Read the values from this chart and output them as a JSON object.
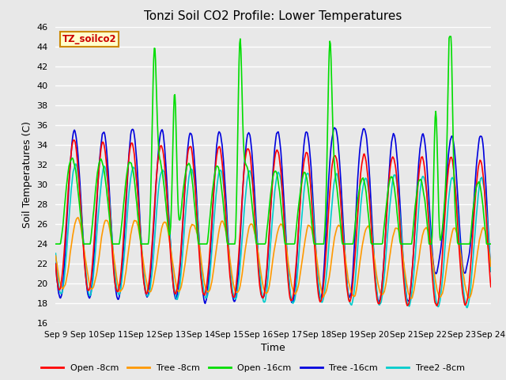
{
  "title": "Tonzi Soil CO2 Profile: Lower Temperatures",
  "xlabel": "Time",
  "ylabel": "Soil Temperatures (C)",
  "ylim": [
    16,
    46
  ],
  "yticks": [
    16,
    18,
    20,
    22,
    24,
    26,
    28,
    30,
    32,
    34,
    36,
    38,
    40,
    42,
    44,
    46
  ],
  "x_labels": [
    "Sep 9",
    "Sep 10",
    "Sep 11",
    "Sep 12",
    "Sep 13",
    "Sep 14",
    "Sep 15",
    "Sep 16",
    "Sep 17",
    "Sep 18",
    "Sep 19",
    "Sep 20",
    "Sep 21",
    "Sep 22",
    "Sep 23",
    "Sep 24"
  ],
  "legend_label": "TZ_soilco2",
  "series": {
    "Open -8cm": {
      "color": "#ff0000",
      "lw": 1.2
    },
    "Tree -8cm": {
      "color": "#ff9900",
      "lw": 1.2
    },
    "Open -16cm": {
      "color": "#00dd00",
      "lw": 1.2
    },
    "Tree -16cm": {
      "color": "#0000dd",
      "lw": 1.2
    },
    "Tree2 -8cm": {
      "color": "#00cccc",
      "lw": 1.2
    }
  },
  "bg_color": "#e8e8e8",
  "title_fontsize": 11,
  "legend_box_facecolor": "#ffffcc",
  "legend_box_edgecolor": "#cc8800"
}
